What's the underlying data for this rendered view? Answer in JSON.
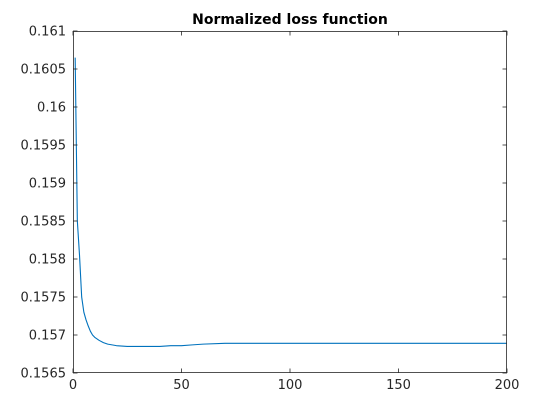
{
  "chart_data": {
    "type": "line",
    "title": "Normalized loss function",
    "xlabel": "",
    "ylabel": "",
    "xlim": [
      0,
      200
    ],
    "ylim": [
      0.1565,
      0.161
    ],
    "xticks": [
      0,
      50,
      100,
      150,
      200
    ],
    "xtick_labels": [
      "0",
      "50",
      "100",
      "150",
      "200"
    ],
    "yticks": [
      0.1565,
      0.157,
      0.1575,
      0.158,
      0.1585,
      0.159,
      0.1595,
      0.16,
      0.1605,
      0.161
    ],
    "ytick_labels": [
      "0.1565",
      "0.157",
      "0.1575",
      "0.158",
      "0.1585",
      "0.159",
      "0.1595",
      "0.16",
      "0.1605",
      "0.161"
    ],
    "grid": false,
    "box": true,
    "series": [
      {
        "color": "#0072bd",
        "x": [
          1,
          2,
          3,
          4,
          5,
          6,
          7,
          8,
          9,
          10,
          12,
          14,
          16,
          18,
          20,
          25,
          30,
          35,
          40,
          45,
          50,
          55,
          60,
          70,
          80,
          100,
          120,
          150,
          180,
          200
        ],
        "y": [
          0.16065,
          0.1585,
          0.15805,
          0.1575,
          0.1573,
          0.1572,
          0.15712,
          0.15705,
          0.157,
          0.15697,
          0.15693,
          0.1569,
          0.15688,
          0.15687,
          0.15686,
          0.15685,
          0.15685,
          0.15685,
          0.15685,
          0.15686,
          0.15686,
          0.15687,
          0.15688,
          0.15689,
          0.15689,
          0.15689,
          0.15689,
          0.15689,
          0.15689,
          0.15689
        ]
      }
    ]
  }
}
